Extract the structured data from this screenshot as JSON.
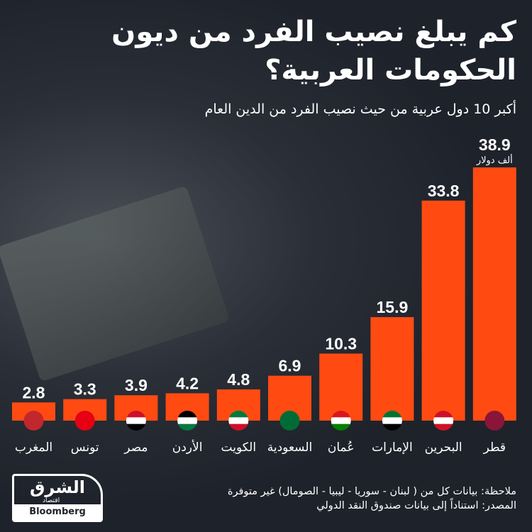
{
  "title": "كم يبلغ  نصيب الفرد من ديون الحكومات العربية؟",
  "subtitle": "أكبر 10 دول عربية من حيث نصيب الفرد من الدين العام",
  "note": "ملاحظة: بيانات كل من ( لبنان - سوريا - ليبيا - الصومال) غير متوفرة",
  "source": "المصدر: استناداً إلى بيانات صندوق النقد الدولي",
  "logo": {
    "arabic": "الشرق",
    "arabic_sub": "اقتصاد",
    "brand": "Bloomberg"
  },
  "chart_data": {
    "type": "bar",
    "title": "أكبر 10 دول عربية من حيث نصيب الفرد من الدين العام",
    "unit_label": "ألف دولار",
    "categories": [
      "المغرب",
      "تونس",
      "مصر",
      "الأردن",
      "الكويت",
      "السعودية",
      "عُمان",
      "الإمارات",
      "البحرين",
      "قطر"
    ],
    "values": [
      2.8,
      3.3,
      3.9,
      4.2,
      4.8,
      6.9,
      10.3,
      15.9,
      33.8,
      38.9
    ],
    "flags": [
      "morocco-flag",
      "tunisia-flag",
      "egypt-flag",
      "jordan-flag",
      "kuwait-flag",
      "saudi-flag",
      "oman-flag",
      "uae-flag",
      "bahrain-flag",
      "qatar-flag"
    ],
    "bar_color": "#ff4b12",
    "ylim": [
      0,
      38.9
    ]
  }
}
